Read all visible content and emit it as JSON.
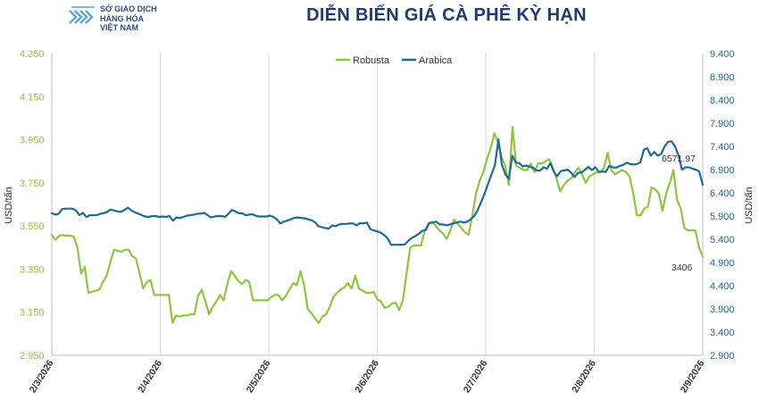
{
  "page": {
    "title": "DIỄN BIẾN GIÁ CÀ PHÊ KỲ HẠN"
  },
  "logo": {
    "lines": [
      "SỞ GIAO DỊCH",
      "HÀNG HÓA",
      "VIỆT NAM"
    ],
    "icon": "vnx-logo-icon",
    "color": "#5aa6d6"
  },
  "chart_data": {
    "type": "line",
    "x_tick_labels": [
      "2/3/2026",
      "2/4/2026",
      "2/5/2026",
      "2/6/2026",
      "2/7/2026",
      "2/8/2026",
      "2/9/2026"
    ],
    "y_left": {
      "label": "USD/tấn",
      "min": 2950,
      "max": 4350,
      "ticks": [
        "2.950",
        "3.150",
        "3.350",
        "3.550",
        "3.750",
        "3.950",
        "4.150",
        "4.350"
      ],
      "tick_color": "#8dc63f"
    },
    "y_right": {
      "label": "USD/tấn",
      "min": 2900,
      "max": 9400,
      "ticks": [
        "2.900",
        "3.400",
        "3.900",
        "4.400",
        "4.900",
        "5.400",
        "5.900",
        "6.400",
        "6.900",
        "7.400",
        "7.900",
        "8.400",
        "8.900",
        "9.400"
      ],
      "tick_color": "#1f6b94"
    },
    "grid": "vertical",
    "legend_position": "top-center",
    "series": [
      {
        "name": "Robusta",
        "axis": "left",
        "color": "#8dc63f",
        "end_label": "3406",
        "values": [
          3510,
          3485,
          3505,
          3508,
          3505,
          3505,
          3500,
          3450,
          3330,
          3360,
          3240,
          3245,
          3250,
          3255,
          3290,
          3320,
          3380,
          3440,
          3435,
          3430,
          3440,
          3440,
          3410,
          3400,
          3330,
          3260,
          3290,
          3300,
          3230,
          3230,
          3230,
          3230,
          3230,
          3100,
          3135,
          3130,
          3135,
          3135,
          3140,
          3140,
          3225,
          3255,
          3200,
          3140,
          3175,
          3200,
          3230,
          3205,
          3280,
          3340,
          3320,
          3295,
          3280,
          3300,
          3290,
          3205,
          3205,
          3205,
          3205,
          3205,
          3220,
          3230,
          3230,
          3205,
          3225,
          3255,
          3285,
          3275,
          3340,
          3275,
          3165,
          3145,
          3120,
          3100,
          3130,
          3140,
          3175,
          3220,
          3240,
          3255,
          3265,
          3285,
          3260,
          3320,
          3260,
          3250,
          3240,
          3240,
          3245,
          3210,
          3200,
          3170,
          3175,
          3190,
          3195,
          3160,
          3205,
          3330,
          3450,
          3460,
          3460,
          3460,
          3530,
          3560,
          3570,
          3550,
          3530,
          3515,
          3490,
          3530,
          3580,
          3560,
          3540,
          3520,
          3510,
          3600,
          3700,
          3760,
          3800,
          3860,
          3910,
          3980,
          3940,
          3870,
          3830,
          3740,
          4010,
          3830,
          3820,
          3810,
          3810,
          3840,
          3800,
          3840,
          3840,
          3850,
          3860,
          3820,
          3770,
          3710,
          3740,
          3760,
          3770,
          3800,
          3820,
          3790,
          3750,
          3780,
          3790,
          3800,
          3800,
          3820,
          3890,
          3810,
          3790,
          3800,
          3810,
          3800,
          3780,
          3700,
          3600,
          3600,
          3630,
          3640,
          3730,
          3720,
          3700,
          3620,
          3700,
          3750,
          3810,
          3670,
          3630,
          3540,
          3530,
          3530,
          3530,
          3450,
          3406
        ]
      },
      {
        "name": "Arabica",
        "axis": "right",
        "color": "#1f6b94",
        "end_label": "6571.97",
        "values": [
          5960,
          5930,
          5950,
          6050,
          6060,
          6060,
          6060,
          6020,
          5920,
          5970,
          5880,
          5920,
          5920,
          5920,
          5950,
          5960,
          5990,
          6040,
          6020,
          6000,
          5990,
          6030,
          6080,
          6020,
          5980,
          5950,
          5920,
          5890,
          5880,
          5900,
          5900,
          5880,
          5890,
          5880,
          5900,
          5800,
          5870,
          5860,
          5880,
          5910,
          5920,
          5930,
          5950,
          5950,
          5970,
          5920,
          5870,
          5890,
          5900,
          5900,
          5880,
          5950,
          6030,
          6000,
          5960,
          5960,
          5920,
          5930,
          5940,
          5900,
          5890,
          5890,
          5890,
          5910,
          5880,
          5830,
          5740,
          5780,
          5800,
          5830,
          5860,
          5870,
          5860,
          5850,
          5830,
          5810,
          5770,
          5680,
          5660,
          5640,
          5630,
          5700,
          5680,
          5720,
          5730,
          5730,
          5740,
          5740,
          5700,
          5750,
          5740,
          5760,
          5620,
          5590,
          5570,
          5540,
          5490,
          5420,
          5280,
          5280,
          5280,
          5280,
          5290,
          5370,
          5430,
          5470,
          5520,
          5580,
          5600,
          5750,
          5760,
          5780,
          5720,
          5720,
          5700,
          5720,
          5740,
          5760,
          5780,
          5760,
          5780,
          5830,
          5900,
          6030,
          6200,
          6380,
          6600,
          6800,
          7000,
          7550,
          7000,
          6800,
          6700,
          7200,
          7050,
          7040,
          6970,
          6990,
          6960,
          6940,
          6880,
          6880,
          6950,
          6920,
          7040,
          6850,
          6760,
          6870,
          6880,
          6900,
          6830,
          6740,
          6830,
          6840,
          6900,
          6960,
          6890,
          6950,
          6850,
          6860,
          6850,
          6980,
          6950,
          6940,
          6980,
          7000,
          7050,
          7020,
          7010,
          7020,
          7060,
          7330,
          7360,
          7200,
          7280,
          7200,
          7240,
          7400,
          7500,
          7510,
          7400,
          7200,
          6900,
          6950,
          6950,
          6920,
          6900,
          6860,
          6572
        ]
      }
    ]
  }
}
